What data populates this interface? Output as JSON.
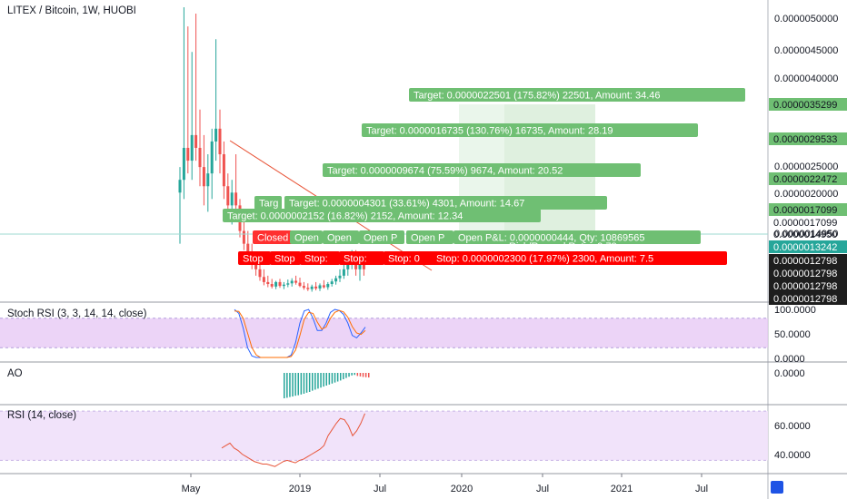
{
  "header": {
    "title": "LITEX / Bitcoin, 1W, HUOBI"
  },
  "colors": {
    "up": "#26a69a",
    "down": "#ef5350",
    "target_label": "#6fbf73",
    "stop_label": "#ff0000",
    "closed_label": "#ff3030",
    "stoch_fill": "#e7c9f5",
    "rsi_fill": "#f0e0fa",
    "trendline": "#e8563a",
    "last_price": "#26a69a",
    "scale_marker": "#1e1e1e"
  },
  "chart_data": [
    {
      "type": "candlestick",
      "pane": "price",
      "title": "LITEX / Bitcoin, 1W, HUOBI",
      "xlabel": "",
      "ylabel": "",
      "x_ticks": [
        "May",
        "2019",
        "Jul",
        "2020",
        "Jul",
        "2021",
        "Jul"
      ],
      "y_ticks": [
        "0.0000050000",
        "0.0000045000",
        "0.0000040000",
        "0.0000025000",
        "0.0000020000",
        "0.0000014950"
      ],
      "ylim": [
        7e-07,
        5.2e-06
      ],
      "candles": [
        {
          "o": 2.3e-06,
          "h": 2.7e-06,
          "l": 1.5e-06,
          "c": 2.5e-06
        },
        {
          "o": 2.5e-06,
          "h": 5.2e-06,
          "l": 2.2e-06,
          "c": 3e-06
        },
        {
          "o": 3e-06,
          "h": 4.9e-06,
          "l": 2.6e-06,
          "c": 2.8e-06
        },
        {
          "o": 2.8e-06,
          "h": 4.5e-06,
          "l": 2.5e-06,
          "c": 3.2e-06
        },
        {
          "o": 3.2e-06,
          "h": 5.1e-06,
          "l": 2.8e-06,
          "c": 3e-06
        },
        {
          "o": 3e-06,
          "h": 3.6e-06,
          "l": 2.4e-06,
          "c": 2.7e-06
        },
        {
          "o": 2.7e-06,
          "h": 3.2e-06,
          "l": 2.1e-06,
          "c": 2.4e-06
        },
        {
          "o": 2.4e-06,
          "h": 2.9e-06,
          "l": 2e-06,
          "c": 2.6e-06
        },
        {
          "o": 2.6e-06,
          "h": 3.3e-06,
          "l": 2.2e-06,
          "c": 3.1e-06
        },
        {
          "o": 3.1e-06,
          "h": 4.7e-06,
          "l": 2.8e-06,
          "c": 3.3e-06
        },
        {
          "o": 3.3e-06,
          "h": 3.6e-06,
          "l": 2.6e-06,
          "c": 2.9e-06
        },
        {
          "o": 2.9e-06,
          "h": 3.1e-06,
          "l": 2.2e-06,
          "c": 2.4e-06
        },
        {
          "o": 2.4e-06,
          "h": 2.6e-06,
          "l": 1.9e-06,
          "c": 2.1e-06
        },
        {
          "o": 2.1e-06,
          "h": 2.5e-06,
          "l": 1.8e-06,
          "c": 2.3e-06
        },
        {
          "o": 2.3e-06,
          "h": 2.9e-06,
          "l": 2e-06,
          "c": 2.1e-06
        },
        {
          "o": 2.1e-06,
          "h": 2.2e-06,
          "l": 1.6e-06,
          "c": 1.7e-06
        },
        {
          "o": 1.7e-06,
          "h": 1.9e-06,
          "l": 1.4e-06,
          "c": 1.5e-06
        },
        {
          "o": 1.5e-06,
          "h": 1.7e-06,
          "l": 1.2e-06,
          "c": 1.3e-06
        },
        {
          "o": 1.3e-06,
          "h": 1.5e-06,
          "l": 1.1e-06,
          "c": 1.2e-06
        },
        {
          "o": 1.2e-06,
          "h": 1.3e-06,
          "l": 1e-06,
          "c": 1.1e-06
        },
        {
          "o": 1.1e-06,
          "h": 1.2e-06,
          "l": 9.2e-07,
          "c": 9.8e-07
        },
        {
          "o": 9.8e-07,
          "h": 1.1e-06,
          "l": 8.5e-07,
          "c": 9e-07
        },
        {
          "o": 9e-07,
          "h": 1e-06,
          "l": 8.2e-07,
          "c": 8.7e-07
        },
        {
          "o": 8.7e-07,
          "h": 9.5e-07,
          "l": 8e-07,
          "c": 8.3e-07
        },
        {
          "o": 8.3e-07,
          "h": 9.2e-07,
          "l": 7.9e-07,
          "c": 9e-07
        },
        {
          "o": 9e-07,
          "h": 9.5e-07,
          "l": 8.1e-07,
          "c": 8.4e-07
        },
        {
          "o": 8.4e-07,
          "h": 9e-07,
          "l": 7.9e-07,
          "c": 8.6e-07
        },
        {
          "o": 8.6e-07,
          "h": 9.4e-07,
          "l": 8.2e-07,
          "c": 8.8e-07
        },
        {
          "o": 8.8e-07,
          "h": 9.6e-07,
          "l": 8.3e-07,
          "c": 9.2e-07
        },
        {
          "o": 9.2e-07,
          "h": 1e-06,
          "l": 8.6e-07,
          "c": 8.9e-07
        },
        {
          "o": 8.9e-07,
          "h": 9.7e-07,
          "l": 8.2e-07,
          "c": 8.4e-07
        },
        {
          "o": 8.4e-07,
          "h": 9e-07,
          "l": 7.8e-07,
          "c": 8.1e-07
        },
        {
          "o": 8.1e-07,
          "h": 8.8e-07,
          "l": 7.6e-07,
          "c": 7.9e-07
        },
        {
          "o": 7.9e-07,
          "h": 8.6e-07,
          "l": 7.5e-07,
          "c": 8.3e-07
        },
        {
          "o": 8.3e-07,
          "h": 9e-07,
          "l": 7.7e-07,
          "c": 8e-07
        },
        {
          "o": 8e-07,
          "h": 8.8e-07,
          "l": 7.6e-07,
          "c": 8.5e-07
        },
        {
          "o": 8.5e-07,
          "h": 9.3e-07,
          "l": 8e-07,
          "c": 8.2e-07
        },
        {
          "o": 8.2e-07,
          "h": 9e-07,
          "l": 7.8e-07,
          "c": 8.7e-07
        },
        {
          "o": 8.7e-07,
          "h": 9.5e-07,
          "l": 8.3e-07,
          "c": 9.1e-07
        },
        {
          "o": 9.1e-07,
          "h": 1e-06,
          "l": 8.6e-07,
          "c": 9.6e-07
        },
        {
          "o": 9.6e-07,
          "h": 1.1e-06,
          "l": 9e-07,
          "c": 1e-06
        },
        {
          "o": 1e-06,
          "h": 1.2e-06,
          "l": 9.5e-07,
          "c": 1.1e-06
        },
        {
          "o": 1.1e-06,
          "h": 1.3e-06,
          "l": 1e-06,
          "c": 1.2e-06
        },
        {
          "o": 1.2e-06,
          "h": 1.4e-06,
          "l": 1.1e-06,
          "c": 1.3e-06
        },
        {
          "o": 1.3e-06,
          "h": 1.4e-06,
          "l": 1e-06,
          "c": 1.1e-06
        },
        {
          "o": 1.1e-06,
          "h": 1.3e-06,
          "l": 9.2e-07,
          "c": 1.2e-06
        },
        {
          "o": 1.2e-06,
          "h": 1.3e-06,
          "l": 1e-06,
          "c": 1.1e-06
        }
      ],
      "price_scale_labels": [
        {
          "text": "0.0000035299",
          "kind": "target"
        },
        {
          "text": "0.0000029533",
          "kind": "target"
        },
        {
          "text": "0.0000022472",
          "kind": "target"
        },
        {
          "text": "0.0000017099",
          "kind": "target"
        },
        {
          "text": "0.0000017099",
          "kind": "plain"
        },
        {
          "text": "0.0000014950",
          "kind": "plain"
        },
        {
          "text": "0.0000013242",
          "kind": "last"
        },
        {
          "text": "0.0000012798",
          "kind": "marker"
        },
        {
          "text": "0.0000012798",
          "kind": "marker"
        },
        {
          "text": "0.0000012798",
          "kind": "marker"
        },
        {
          "text": "0.0000012798",
          "kind": "marker"
        },
        {
          "text": "0.0000012798",
          "kind": "marker"
        }
      ],
      "annotations": {
        "targets": [
          "Target: 0.0000022501 (175.82%) 22501, Amount: 34.46",
          "Target: 0.0000016735 (130.76%) 16735, Amount: 28.19",
          "Target: 0.0000009674 (75.59%) 9674, Amount: 20.52",
          "Targ",
          "Target: 0.0000004301 (33.61%) 4301, Amount: 14.67",
          "Target: 0.0000002152 (16.82%) 2152, Amount: 12.34"
        ],
        "open_tags": [
          "Open",
          "Open",
          "Open P",
          "Open P"
        ],
        "open_pnl": "Open P&L: 0.0000000444, Qty: 10869565",
        "risk_reward": "Risk/Reward Ratio: 9.78",
        "closed_tag": "Closed",
        "stops_short": [
          "Stop",
          "Stop",
          "Stop:",
          "Stop:",
          "Stop: 0"
        ],
        "stop_full": "Stop: 0.0000002300 (17.97%) 2300, Amount: 7.5"
      }
    },
    {
      "type": "line",
      "pane": "stoch_rsi",
      "title": "Stoch RSI (3, 3, 14, 14, close)",
      "y_ticks": [
        "100.0000",
        "50.0000",
        "0.0000"
      ],
      "ylim": [
        0,
        100
      ],
      "band": [
        20,
        80
      ],
      "series": [
        {
          "name": "K",
          "color": "#2962ff",
          "values": [
            98,
            90,
            60,
            20,
            3,
            0,
            0,
            0,
            0,
            0,
            0,
            0,
            0,
            5,
            30,
            70,
            95,
            98,
            80,
            55,
            55,
            70,
            92,
            98,
            96,
            88,
            70,
            45,
            40,
            50,
            62
          ]
        },
        {
          "name": "D",
          "color": "#ff6d00",
          "values": [
            95,
            94,
            80,
            50,
            20,
            5,
            0,
            0,
            0,
            0,
            0,
            0,
            0,
            2,
            15,
            45,
            78,
            92,
            90,
            72,
            58,
            62,
            80,
            92,
            96,
            93,
            82,
            63,
            50,
            47,
            55
          ]
        }
      ]
    },
    {
      "type": "bar",
      "pane": "ao",
      "title": "AO",
      "y_ticks": [
        "0.0000"
      ],
      "values": [
        -1.0,
        -0.98,
        -0.95,
        -0.93,
        -0.9,
        -0.88,
        -0.85,
        -0.82,
        -0.78,
        -0.75,
        -0.7,
        -0.66,
        -0.62,
        -0.58,
        -0.54,
        -0.5,
        -0.46,
        -0.42,
        -0.38,
        -0.34,
        -0.3,
        -0.25,
        -0.2,
        -0.15,
        -0.1,
        -0.08,
        -0.12,
        -0.14,
        -0.16,
        -0.17,
        -0.18
      ]
    },
    {
      "type": "line",
      "pane": "rsi",
      "title": "RSI (14, close)",
      "y_ticks": [
        "60.0000",
        "40.0000"
      ],
      "ylim": [
        20,
        73
      ],
      "band": [
        30,
        70
      ],
      "values": [
        40,
        42,
        44,
        40,
        38,
        35,
        33,
        31,
        29,
        28,
        27,
        27,
        26,
        25,
        27,
        29,
        30,
        29,
        28,
        30,
        31,
        33,
        35,
        37,
        39,
        42,
        50,
        55,
        60,
        64,
        63,
        58,
        50,
        54,
        60,
        68
      ]
    }
  ]
}
